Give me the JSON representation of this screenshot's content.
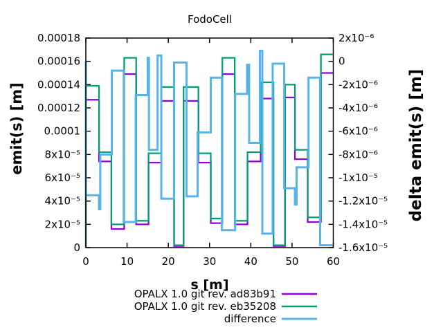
{
  "chart_data": {
    "type": "line",
    "title": "FodoCell",
    "xlabel": "s [m]",
    "ylabel_left": "emit(s) [m]",
    "ylabel_right": "delta emit(s) [m]",
    "grid": false,
    "legend_position": "below-right",
    "x_range": [
      0,
      60
    ],
    "y_left_range": [
      0,
      0.00018
    ],
    "y_right_range": [
      -1.6e-05,
      2e-06
    ],
    "x_ticks": {
      "values": [
        0,
        10,
        20,
        30,
        40,
        50,
        60
      ],
      "labels": [
        "0",
        "10",
        "20",
        "30",
        "40",
        "50",
        "60"
      ]
    },
    "y_left_ticks": {
      "values": [
        0,
        2e-05,
        4e-05,
        6e-05,
        8e-05,
        0.0001,
        0.00012,
        0.00014,
        0.00016,
        0.00018
      ],
      "labels": [
        "0",
        "2x10⁻⁵",
        "4x10⁻⁵",
        "6x10⁻⁵",
        "8x10⁻⁵",
        "0.0001",
        "0.00012",
        "0.00014",
        "0.00016",
        "0.00018"
      ]
    },
    "y_right_ticks": {
      "values": [
        -1.6e-05,
        -1.4e-05,
        -1.2e-05,
        -1e-05,
        -8e-06,
        -6e-06,
        -4e-06,
        -2e-06,
        0,
        2e-06
      ],
      "labels": [
        "-1.6x10⁻⁵",
        "-1.4x10⁻⁵",
        "-1.2x10⁻⁵",
        "-1x10⁻⁵",
        "-8x10⁻⁶",
        "-6x10⁻⁶",
        "-4x10⁻⁶",
        "-2x10⁻⁶",
        "0",
        "2x10⁻⁶"
      ]
    },
    "series": [
      {
        "name": "OPALX 1.0 git rev. ad83b91",
        "color": "#9400d3",
        "axis": "left",
        "style": "steps",
        "start_value": 0,
        "segments": [
          [
            0,
            3.2,
            0.000127
          ],
          [
            3.2,
            6.2,
            7.4e-05
          ],
          [
            6.2,
            9.3,
            1.6e-05
          ],
          [
            9.3,
            12.2,
            0.000149
          ],
          [
            12.2,
            15.2,
            2e-05
          ],
          [
            15.2,
            18.3,
            7.3e-05
          ],
          [
            18.3,
            21.4,
            0.000126
          ],
          [
            21.4,
            23.7,
            1.3e-06
          ],
          [
            23.7,
            27.3,
            0.000126
          ],
          [
            27.3,
            30.3,
            7.3e-05
          ],
          [
            30.3,
            33.1,
            2.1e-05
          ],
          [
            33.1,
            36.1,
            0.000149
          ],
          [
            36.1,
            39.2,
            2e-05
          ],
          [
            39.2,
            42.4,
            7.4e-05
          ],
          [
            42.4,
            45.5,
            0.000128
          ],
          [
            45.5,
            48.3,
            1.3e-06
          ],
          [
            48.3,
            50.7,
            0.000129
          ],
          [
            50.7,
            53.8,
            7.6e-05
          ],
          [
            53.8,
            57.0,
            2.2e-05
          ],
          [
            57.0,
            60,
            0.00015
          ]
        ]
      },
      {
        "name": "OPALX 1.0 git rev. eb35208",
        "color": "#009e73",
        "axis": "left",
        "style": "steps",
        "start_value": 0,
        "segments": [
          [
            0,
            3.2,
            0.000139
          ],
          [
            3.2,
            6.2,
            8.2e-05
          ],
          [
            6.2,
            9.3,
            2e-05
          ],
          [
            9.3,
            12.2,
            0.000163
          ],
          [
            12.2,
            15.2,
            2.3e-05
          ],
          [
            15.2,
            18.3,
            8.1e-05
          ],
          [
            18.3,
            21.4,
            0.000138
          ],
          [
            21.4,
            23.7,
            2e-06
          ],
          [
            23.7,
            27.3,
            0.000138
          ],
          [
            27.3,
            30.3,
            8.1e-05
          ],
          [
            30.3,
            33.1,
            2.5e-05
          ],
          [
            33.1,
            36.1,
            0.000163
          ],
          [
            36.1,
            39.2,
            2.3e-05
          ],
          [
            39.2,
            42.4,
            8.2e-05
          ],
          [
            42.4,
            45.5,
            0.000142
          ],
          [
            45.5,
            48.3,
            2e-06
          ],
          [
            48.3,
            50.7,
            0.00014
          ],
          [
            50.7,
            53.8,
            8.4e-05
          ],
          [
            53.8,
            57.0,
            2.6e-05
          ],
          [
            57.0,
            60,
            0.000166
          ]
        ]
      },
      {
        "name": "difference",
        "color": "#56b4e9",
        "axis": "right",
        "style": "steps",
        "start_value": 0,
        "segments": [
          [
            0,
            3.2,
            -1.15e-05
          ],
          [
            3.2,
            3.5,
            -1.27e-05
          ],
          [
            3.5,
            6.3,
            -8e-06
          ],
          [
            6.3,
            9.2,
            -8e-07
          ],
          [
            9.2,
            12.1,
            -1.38e-05
          ],
          [
            12.1,
            15.0,
            -2.9e-06
          ],
          [
            15.0,
            15.3,
            3e-07
          ],
          [
            15.3,
            17.4,
            -7.6e-06
          ],
          [
            17.4,
            18.3,
            5e-07
          ],
          [
            18.3,
            21.4,
            -1.18e-05
          ],
          [
            21.4,
            24.4,
            -1e-07
          ],
          [
            24.4,
            27.1,
            -1.16e-05
          ],
          [
            27.1,
            30.3,
            -6.1e-06
          ],
          [
            30.3,
            33.0,
            -1.4e-06
          ],
          [
            33.0,
            36.2,
            -1.45e-05
          ],
          [
            36.2,
            39.1,
            -2.8e-06
          ],
          [
            39.1,
            39.6,
            -3e-07
          ],
          [
            39.6,
            42.2,
            -7e-06
          ],
          [
            42.2,
            42.8,
            9e-07
          ],
          [
            42.8,
            45.3,
            -1.48e-05
          ],
          [
            45.3,
            48.1,
            -2e-07
          ],
          [
            48.1,
            50.7,
            -1.09e-05
          ],
          [
            50.7,
            51.1,
            -1.23e-05
          ],
          [
            51.1,
            54.0,
            -9.1e-06
          ],
          [
            54.0,
            56.8,
            -1.4e-06
          ],
          [
            56.8,
            60,
            -1.58e-05
          ]
        ]
      }
    ]
  }
}
